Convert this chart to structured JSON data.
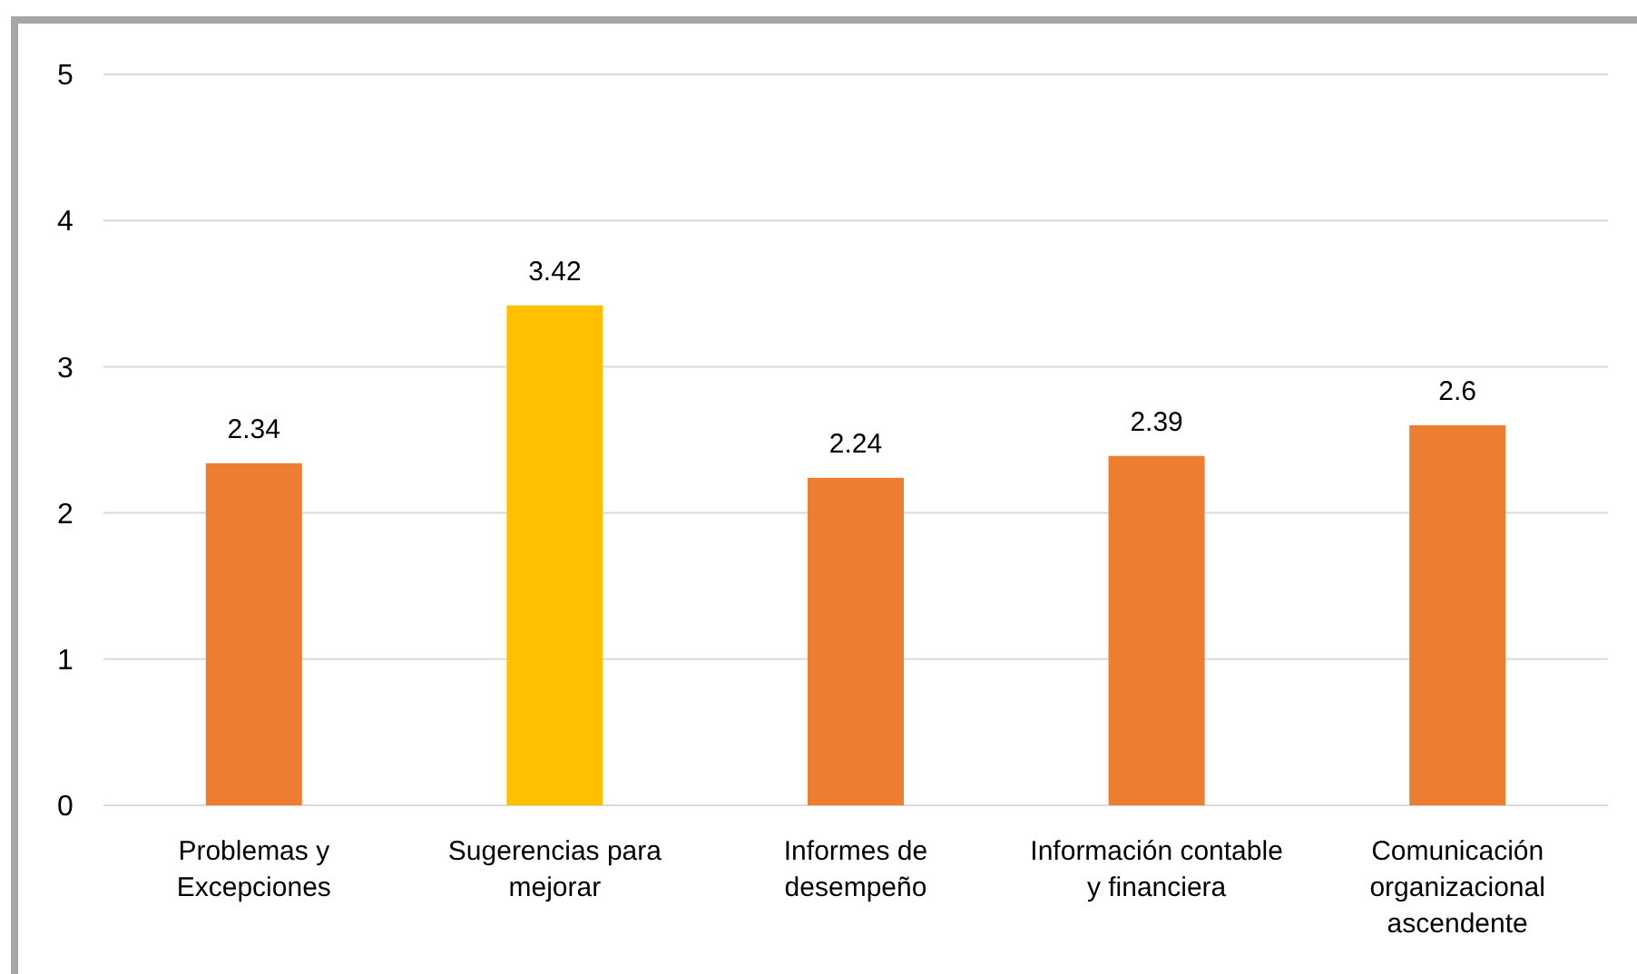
{
  "chart_data": {
    "type": "bar",
    "categories": [
      "Problemas y Excepciones",
      "Sugerencias para mejorar",
      "Informes de desempeño",
      "Información contable y financiera",
      "Comunicación organizacional ascendente"
    ],
    "values": [
      2.34,
      3.42,
      2.24,
      2.39,
      2.6
    ],
    "colors": [
      "#ed7d31",
      "#ffc000",
      "#ed7d31",
      "#ed7d31",
      "#ed7d31"
    ],
    "ylim": [
      0,
      5
    ],
    "yticks": [
      0,
      1,
      2,
      3,
      4,
      5
    ],
    "grid": "y",
    "data_labels": true
  }
}
